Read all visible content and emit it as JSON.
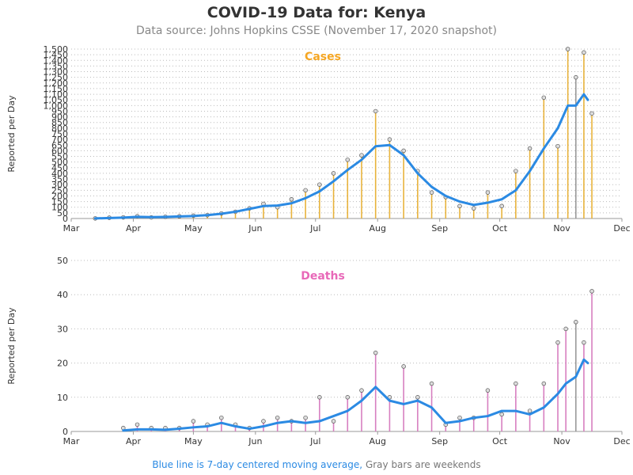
{
  "header": {
    "title": "COVID-19 Data for: Kenya",
    "subtitle": "Data source: Johns Hopkins CSSE (November 17, 2020 snapshot)"
  },
  "footnote": {
    "blue_part": "Blue line is 7-day centered moving average,",
    "gray_part": "Gray bars are weekends"
  },
  "colors": {
    "cases_bar": "#e8b33c",
    "deaths_bar": "#d77fc0",
    "weekend_bar": "#999999",
    "moving_average": "#2b8ae3",
    "cases_label": "#f5a623",
    "deaths_label": "#e868b8",
    "marker_fill": "#dddddd"
  },
  "chart_data": [
    {
      "type": "bar",
      "panel_label": "Cases",
      "ylabel": "Reported per Day",
      "xlabel": "",
      "x_ticks": [
        "Mar",
        "Apr",
        "May",
        "Jun",
        "Jul",
        "Aug",
        "Sep",
        "Oct",
        "Nov",
        "Dec"
      ],
      "y_ticks": [
        "0",
        "50",
        "100",
        "150",
        "200",
        "250",
        "300",
        "350",
        "400",
        "450",
        "500",
        "550",
        "600",
        "650",
        "700",
        "750",
        "800",
        "850",
        "900",
        "950",
        "1,000",
        "1,050",
        "1,100",
        "1,150",
        "1,200",
        "1,250",
        "1,300",
        "1,350",
        "1,400",
        "1,450",
        "1,500"
      ],
      "ylim": [
        0,
        1500
      ],
      "xlim": [
        "2020-03-01",
        "2020-12-01"
      ],
      "grid": "horizontal dotted",
      "series": [
        {
          "name": "Cases",
          "style": "bars-with-markers",
          "dates": [
            "2020-03-13",
            "2020-03-20",
            "2020-03-27",
            "2020-04-03",
            "2020-04-10",
            "2020-04-17",
            "2020-04-24",
            "2020-05-01",
            "2020-05-08",
            "2020-05-15",
            "2020-05-22",
            "2020-05-29",
            "2020-06-05",
            "2020-06-12",
            "2020-06-19",
            "2020-06-26",
            "2020-07-03",
            "2020-07-10",
            "2020-07-17",
            "2020-07-24",
            "2020-07-31",
            "2020-08-07",
            "2020-08-14",
            "2020-08-21",
            "2020-08-28",
            "2020-09-04",
            "2020-09-11",
            "2020-09-18",
            "2020-09-25",
            "2020-10-02",
            "2020-10-09",
            "2020-10-16",
            "2020-10-23",
            "2020-10-30",
            "2020-11-04",
            "2020-11-08",
            "2020-11-12",
            "2020-11-16"
          ],
          "values": [
            1,
            7,
            10,
            20,
            10,
            15,
            20,
            25,
            30,
            45,
            60,
            90,
            130,
            100,
            170,
            250,
            300,
            400,
            520,
            560,
            950,
            700,
            600,
            420,
            230,
            190,
            110,
            90,
            230,
            110,
            420,
            620,
            1070,
            640,
            1500,
            1250,
            1470,
            930
          ]
        },
        {
          "name": "7-day moving average",
          "style": "line",
          "dates": [
            "2020-03-13",
            "2020-03-20",
            "2020-03-27",
            "2020-04-03",
            "2020-04-10",
            "2020-04-17",
            "2020-04-24",
            "2020-05-01",
            "2020-05-08",
            "2020-05-15",
            "2020-05-22",
            "2020-05-29",
            "2020-06-05",
            "2020-06-12",
            "2020-06-19",
            "2020-06-26",
            "2020-07-03",
            "2020-07-10",
            "2020-07-17",
            "2020-07-24",
            "2020-07-31",
            "2020-08-07",
            "2020-08-14",
            "2020-08-21",
            "2020-08-28",
            "2020-09-04",
            "2020-09-11",
            "2020-09-18",
            "2020-09-25",
            "2020-10-02",
            "2020-10-09",
            "2020-10-16",
            "2020-10-23",
            "2020-10-30",
            "2020-11-04",
            "2020-11-08",
            "2020-11-12",
            "2020-11-14"
          ],
          "values": [
            1,
            4,
            8,
            15,
            12,
            14,
            18,
            22,
            30,
            42,
            60,
            85,
            110,
            115,
            135,
            180,
            240,
            330,
            430,
            520,
            640,
            650,
            560,
            400,
            280,
            200,
            150,
            120,
            140,
            170,
            250,
            420,
            620,
            800,
            1000,
            1000,
            1100,
            1050
          ]
        }
      ]
    },
    {
      "type": "bar",
      "panel_label": "Deaths",
      "ylabel": "Reported per Day",
      "xlabel": "",
      "x_ticks": [
        "Mar",
        "Apr",
        "May",
        "Jun",
        "Jul",
        "Aug",
        "Sep",
        "Oct",
        "Nov",
        "Dec"
      ],
      "y_ticks": [
        "0",
        "10",
        "20",
        "30",
        "40",
        "50"
      ],
      "ylim": [
        0,
        50
      ],
      "xlim": [
        "2020-03-01",
        "2020-12-01"
      ],
      "grid": "horizontal dotted",
      "series": [
        {
          "name": "Deaths",
          "style": "bars-with-markers",
          "dates": [
            "2020-03-27",
            "2020-04-03",
            "2020-04-10",
            "2020-04-17",
            "2020-04-24",
            "2020-05-01",
            "2020-05-08",
            "2020-05-15",
            "2020-05-22",
            "2020-05-29",
            "2020-06-05",
            "2020-06-12",
            "2020-06-19",
            "2020-06-26",
            "2020-07-03",
            "2020-07-10",
            "2020-07-17",
            "2020-07-24",
            "2020-07-31",
            "2020-08-07",
            "2020-08-14",
            "2020-08-21",
            "2020-08-28",
            "2020-09-04",
            "2020-09-11",
            "2020-09-18",
            "2020-09-25",
            "2020-10-02",
            "2020-10-09",
            "2020-10-16",
            "2020-10-23",
            "2020-10-30",
            "2020-11-03",
            "2020-11-08",
            "2020-11-12",
            "2020-11-16"
          ],
          "values": [
            1,
            2,
            1,
            1,
            1,
            3,
            2,
            4,
            2,
            1,
            3,
            4,
            3,
            4,
            10,
            3,
            10,
            12,
            23,
            10,
            19,
            10,
            14,
            2,
            4,
            4,
            12,
            5,
            14,
            6,
            14,
            26,
            30,
            32,
            26,
            41
          ]
        },
        {
          "name": "7-day moving average",
          "style": "line",
          "dates": [
            "2020-03-27",
            "2020-04-03",
            "2020-04-10",
            "2020-04-17",
            "2020-04-24",
            "2020-05-01",
            "2020-05-08",
            "2020-05-15",
            "2020-05-22",
            "2020-05-29",
            "2020-06-05",
            "2020-06-12",
            "2020-06-19",
            "2020-06-26",
            "2020-07-03",
            "2020-07-10",
            "2020-07-17",
            "2020-07-24",
            "2020-07-31",
            "2020-08-07",
            "2020-08-14",
            "2020-08-21",
            "2020-08-28",
            "2020-09-04",
            "2020-09-11",
            "2020-09-18",
            "2020-09-25",
            "2020-10-02",
            "2020-10-09",
            "2020-10-16",
            "2020-10-23",
            "2020-10-30",
            "2020-11-03",
            "2020-11-08",
            "2020-11-12",
            "2020-11-14"
          ],
          "values": [
            0.3,
            0.6,
            0.6,
            0.5,
            0.8,
            1.2,
            1.5,
            2.5,
            1.5,
            0.8,
            1.5,
            2.5,
            3.0,
            2.5,
            3.0,
            4.5,
            6.0,
            9.0,
            13.0,
            9.0,
            8.0,
            9.0,
            7.0,
            2.5,
            3.0,
            4.0,
            4.5,
            6.0,
            6.0,
            5.0,
            7.0,
            11.0,
            14.0,
            16.0,
            21.0,
            20.0
          ]
        }
      ]
    }
  ]
}
